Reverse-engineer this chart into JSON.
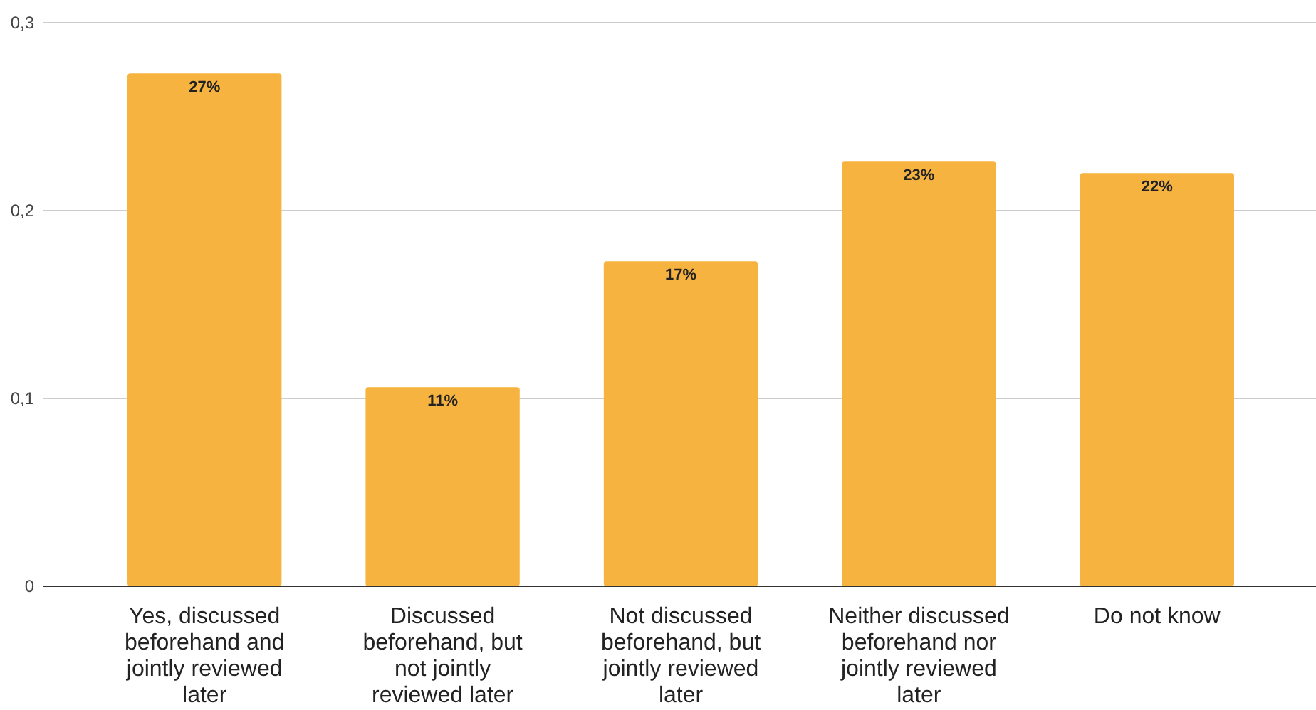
{
  "chart_data": {
    "type": "bar",
    "categories": [
      "Yes, discussed beforehand and jointly reviewed later",
      "Discussed beforehand, but not jointly reviewed later",
      "Not discussed beforehand, but jointly reviewed later",
      "Neither discussed beforehand nor jointly reviewed later",
      "Do not know"
    ],
    "values": [
      0.273,
      0.106,
      0.173,
      0.226,
      0.22
    ],
    "color": "#f7b340",
    "value_labels": [
      "27%",
      "11%",
      "17%",
      "23%",
      "22%"
    ],
    "ylim": [
      0,
      0.3
    ],
    "yticks": [
      0,
      {
        "value": 0.1,
        "label": "0,1"
      },
      {
        "value": 0.2,
        "label": "0,2"
      },
      {
        "value": 0.3,
        "label": "0,3"
      }
    ],
    "grid": "y"
  }
}
